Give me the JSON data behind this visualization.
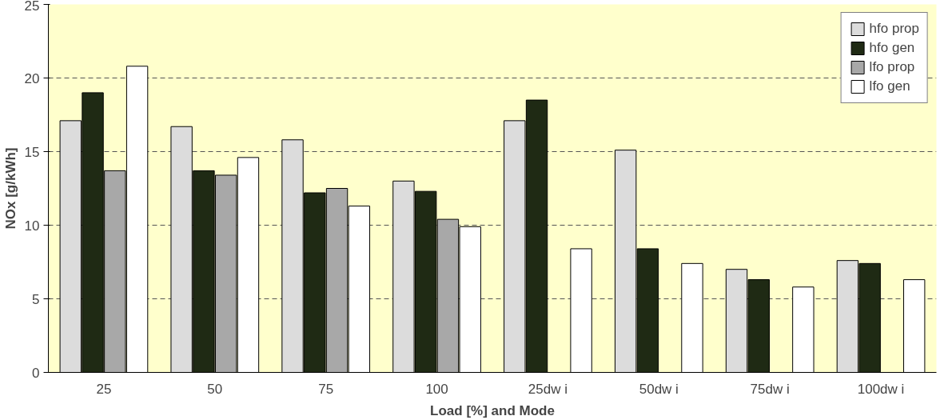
{
  "chart_data": {
    "type": "bar",
    "xlabel": "Load [%] and Mode",
    "ylabel": "NOx [g/kWh]",
    "categories": [
      "25",
      "50",
      "75",
      "100",
      "25dw i",
      "50dw i",
      "75dw i",
      "100dw i"
    ],
    "series": [
      {
        "name": "hfo prop",
        "color": "#dcdcdc",
        "values": [
          17.1,
          16.7,
          15.8,
          13.0,
          17.1,
          15.1,
          7.0,
          7.6
        ]
      },
      {
        "name": "hfo gen",
        "color": "#1f2a14",
        "values": [
          19.0,
          13.7,
          12.2,
          12.3,
          18.5,
          8.4,
          6.3,
          7.4
        ]
      },
      {
        "name": "lfo prop",
        "color": "#a8a8a8",
        "values": [
          13.7,
          13.4,
          12.5,
          10.4,
          null,
          null,
          null,
          null
        ]
      },
      {
        "name": "lfo gen",
        "color": "#ffffff",
        "values": [
          20.8,
          14.6,
          11.3,
          9.9,
          8.4,
          7.4,
          5.8,
          6.3
        ]
      }
    ],
    "ylim": [
      0,
      25
    ],
    "yticks": [
      0,
      5,
      10,
      15,
      20,
      25
    ],
    "grid": "y",
    "legend": "top right"
  }
}
